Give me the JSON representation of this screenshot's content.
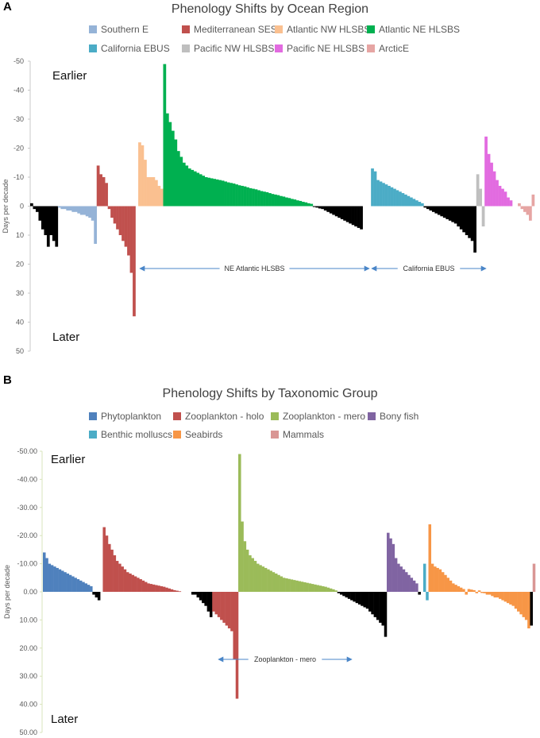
{
  "chart_data": [
    {
      "type": "bar",
      "panel_label": "A",
      "title": "Phenology Shifts by Ocean Region",
      "ylabel": "Days per decade",
      "ylim": [
        -50,
        50
      ],
      "y_inverted": true,
      "yticks": [
        "-50",
        "-40",
        "-30",
        "-20",
        "-10",
        "0",
        "10",
        "20",
        "30",
        "40",
        "50"
      ],
      "earlier_label": "Earlier",
      "later_label": "Later",
      "legend": [
        {
          "name": "Southern E",
          "color": "#95B3D7"
        },
        {
          "name": "Mediterranean SES",
          "color": "#C0504D"
        },
        {
          "name": "Atlantic NW HLSBS",
          "color": "#FAC090"
        },
        {
          "name": "Atlantic NE HLSBS",
          "color": "#00B050"
        },
        {
          "name": "California EBUS",
          "color": "#4BACC6"
        },
        {
          "name": "Pacific NW HLSBS",
          "color": "#BFBFBF"
        },
        {
          "name": "Pacific NE HLSBS",
          "color": "#E26BE0"
        },
        {
          "name": "ArcticE",
          "color": "#E6A5A3"
        }
      ],
      "series": [
        {
          "name": "unlabelled (black)",
          "color": "#000000",
          "values": [
            -1,
            1,
            2,
            5,
            8,
            10,
            14,
            10,
            12,
            14
          ]
        },
        {
          "name": "Southern E",
          "color": "#95B3D7",
          "values": [
            0.5,
            1,
            1,
            1.5,
            1.5,
            2,
            2,
            2.5,
            3,
            3,
            3.5,
            4,
            5,
            13
          ]
        },
        {
          "name": "Mediterranean SES",
          "color": "#C0504D",
          "values": [
            -14,
            -11,
            -10,
            -8,
            1,
            4,
            6,
            8,
            10,
            12,
            14,
            17,
            23,
            38
          ]
        },
        {
          "name": "Atlantic NW HLSBS",
          "color": "#FAC090",
          "values": [
            -22,
            -21,
            -16,
            -10,
            -10,
            -10,
            -9,
            -7,
            -6
          ]
        },
        {
          "name": "Atlantic NE HLSBS",
          "color": "#00B050",
          "values": [
            -49,
            -32,
            -29,
            -26,
            -23,
            -19,
            -17,
            -15,
            -14,
            -13,
            -12.5,
            -12,
            -11.5,
            -11,
            -10.5,
            -10,
            -9.8,
            -9.6,
            -9.4,
            -9.2,
            -9,
            -8.8,
            -8.5,
            -8.2,
            -8,
            -7.8,
            -7.5,
            -7.2,
            -7,
            -6.8,
            -6.5,
            -6.2,
            -6,
            -5.8,
            -5.5,
            -5.2,
            -5,
            -4.8,
            -4.5,
            -4.2,
            -4,
            -3.8,
            -3.5,
            -3.3,
            -3,
            -2.8,
            -2.5,
            -2.3,
            -2,
            -1.8,
            -1.5,
            -1.3,
            -1,
            -0.8
          ]
        },
        {
          "name": "unlabelled (black)",
          "color": "#000000",
          "values": [
            0.3,
            0.5,
            0.8,
            1,
            1.5,
            2,
            2.5,
            3,
            3.5,
            4,
            4.5,
            5,
            5.5,
            6,
            6.5,
            7,
            7.5,
            8
          ]
        },
        {
          "name": "California EBUS",
          "color": "#4BACC6",
          "values": [
            -13,
            -12,
            -9,
            -8.5,
            -8,
            -7.5,
            -7,
            -6.5,
            -6,
            -5.5,
            -5,
            -4.5,
            -4,
            -3.5,
            -3,
            -2.5,
            -2,
            -1.5,
            -1
          ]
        },
        {
          "name": "unlabelled (black)",
          "color": "#000000",
          "values": [
            0.5,
            1,
            1.5,
            2,
            2.5,
            3,
            3.5,
            4,
            4.5,
            5,
            5.5,
            6,
            7,
            8,
            9,
            10,
            11,
            12,
            16
          ]
        },
        {
          "name": "Pacific NW HLSBS",
          "color": "#BFBFBF",
          "values": [
            -11,
            -6,
            7
          ]
        },
        {
          "name": "Pacific NE HLSBS",
          "color": "#E26BE0",
          "values": [
            -24,
            -18,
            -15,
            -12,
            -9,
            -7,
            -6,
            -5,
            -3,
            -2
          ]
        },
        {
          "name": "ArcticE",
          "color": "#E6A5A3",
          "values": [
            -1,
            1,
            2,
            3,
            5,
            -4
          ]
        }
      ],
      "annotations": [
        "NE Atlantic HLSBS",
        "California EBUS"
      ]
    },
    {
      "type": "bar",
      "panel_label": "B",
      "title": "Phenology Shifts by Taxonomic Group",
      "ylabel": "Days per decade",
      "ylim": [
        -50,
        50
      ],
      "y_inverted": true,
      "yticks": [
        "-50.00",
        "-40.00",
        "-30.00",
        "-20.00",
        "-10.00",
        "0.00",
        "10.00",
        "20.00",
        "30.00",
        "40.00",
        "50.00"
      ],
      "earlier_label": "Earlier",
      "later_label": "Later",
      "legend": [
        {
          "name": "Phytoplankton",
          "color": "#4F81BD"
        },
        {
          "name": "Zooplankton - holo",
          "color": "#C0504D"
        },
        {
          "name": "Zooplankton - mero",
          "color": "#9BBB59"
        },
        {
          "name": "Bony fish",
          "color": "#8064A2"
        },
        {
          "name": "Benthic molluscs",
          "color": "#4BACC6"
        },
        {
          "name": "Seabirds",
          "color": "#F79646"
        },
        {
          "name": "Mammals",
          "color": "#D99694"
        }
      ],
      "series": [
        {
          "name": "Phytoplankton",
          "color": "#4F81BD",
          "values": [
            -14,
            -12,
            -10,
            -9.5,
            -9,
            -8.5,
            -8,
            -7.5,
            -7,
            -6.5,
            -6,
            -5.5,
            -5,
            -4.5,
            -4,
            -3.5,
            -3,
            -2.5,
            -2
          ]
        },
        {
          "name": "unlabelled (black)",
          "color": "#000000",
          "values": [
            1,
            2,
            3
          ]
        },
        {
          "name": "Zooplankton - holo",
          "color": "#C0504D",
          "values": [
            -23,
            -20,
            -17,
            -15,
            -13,
            -11,
            -10,
            -9,
            -8,
            -7,
            -6.5,
            -6,
            -5.5,
            -5,
            -4.5,
            -4,
            -3.5,
            -3,
            -2.8,
            -2.6,
            -2.4,
            -2.2,
            -2,
            -1.8,
            -1.5,
            -1.2,
            -0.9,
            -0.6,
            -0.4,
            -0.2
          ]
        },
        {
          "name": "unlabelled (black)",
          "color": "#000000",
          "values": [
            1,
            1,
            2,
            3,
            4,
            5,
            7,
            9
          ]
        },
        {
          "name": "Zooplankton - holo (positive)",
          "color": "#C0504D",
          "values": [
            7,
            8,
            9,
            10,
            11,
            12,
            13,
            14,
            24,
            38
          ]
        },
        {
          "name": "Zooplankton - mero",
          "color": "#9BBB59",
          "values": [
            -49,
            -25,
            -18,
            -15,
            -13,
            -12,
            -11,
            -10,
            -9.5,
            -9,
            -8.5,
            -8,
            -7.5,
            -7,
            -6.5,
            -6,
            -5.5,
            -5,
            -4.8,
            -4.6,
            -4.4,
            -4.2,
            -4,
            -3.8,
            -3.6,
            -3.4,
            -3.2,
            -3,
            -2.8,
            -2.6,
            -2.4,
            -2.2,
            -2,
            -1.8,
            -1.5,
            -1.2,
            -0.9,
            -0.5
          ]
        },
        {
          "name": "unlabelled (black)",
          "color": "#000000",
          "values": [
            0.5,
            1,
            1.5,
            2,
            2.5,
            3,
            3.5,
            4,
            4.5,
            5,
            5.5,
            6,
            7,
            8,
            9,
            10,
            11,
            12,
            16
          ]
        },
        {
          "name": "Bony fish",
          "color": "#8064A2",
          "values": [
            -21,
            -19,
            -17,
            -12,
            -10,
            -9,
            -8,
            -7,
            -6,
            -5,
            -4,
            -3
          ]
        },
        {
          "name": "unlabelled (black)",
          "color": "#000000",
          "values": [
            1
          ]
        },
        {
          "name": "Benthic molluscs",
          "color": "#4BACC6",
          "values": [
            -10,
            3
          ]
        },
        {
          "name": "Seabirds",
          "color": "#F79646",
          "values": [
            -24,
            -10,
            -9,
            -8.5,
            -8,
            -7,
            -6,
            -5,
            -4,
            -3,
            -2.5,
            -2,
            -1.5,
            -1,
            1,
            -1,
            -0.8,
            -0.6,
            0.5,
            -0.5,
            0.4,
            0.5,
            1,
            1,
            1.5,
            2,
            2,
            2.5,
            3,
            3.5,
            4,
            4.5,
            5,
            6,
            7,
            8,
            9,
            10,
            13
          ]
        },
        {
          "name": "unlabelled (black)",
          "color": "#000000",
          "values": [
            12
          ]
        },
        {
          "name": "Mammals",
          "color": "#D99694",
          "values": [
            -10
          ]
        }
      ],
      "annotations": [
        "Zooplankton - mero"
      ]
    }
  ]
}
